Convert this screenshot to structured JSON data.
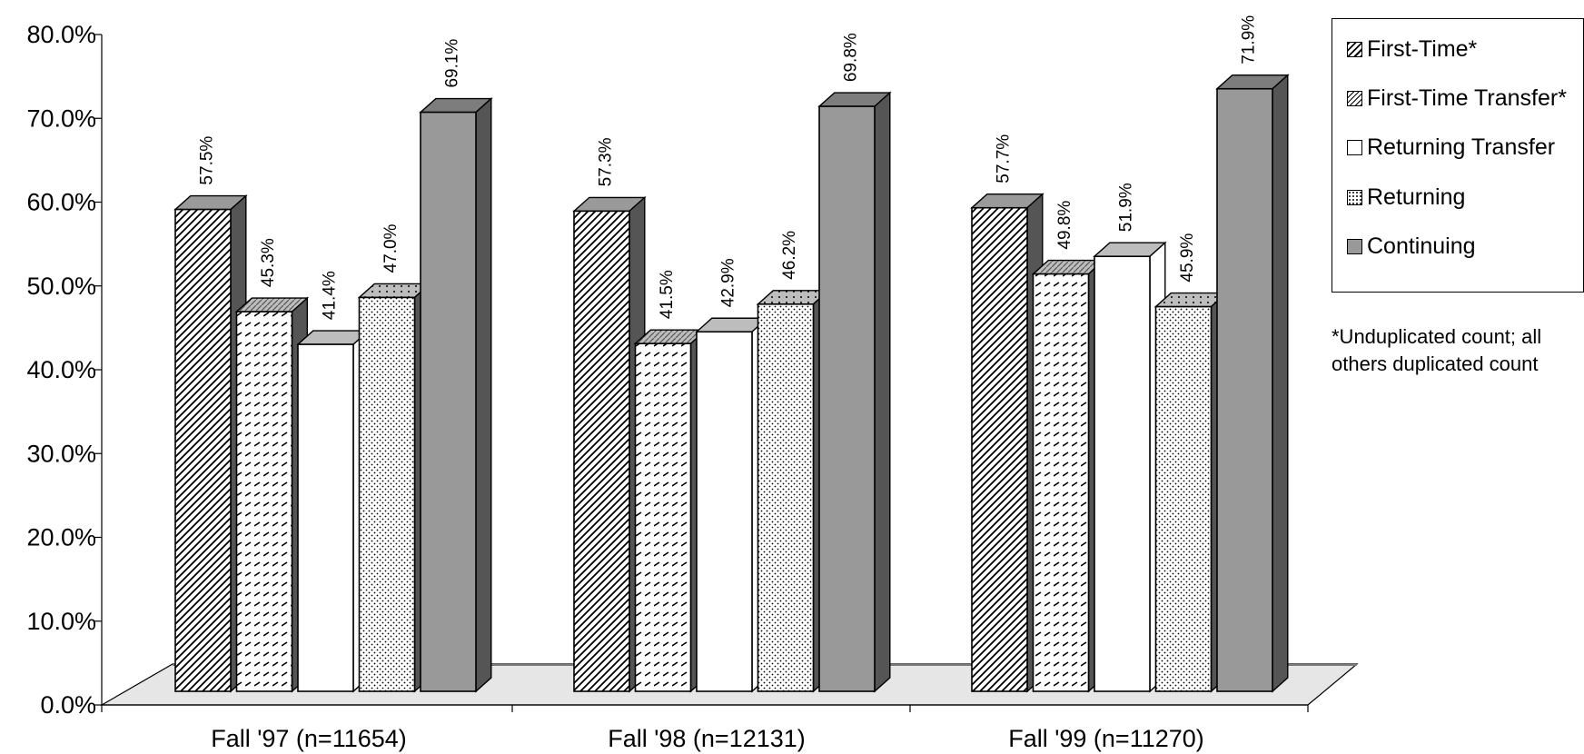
{
  "chart_data": {
    "type": "bar",
    "categories": [
      "Fall '97 (n=11654)",
      "Fall '98 (n=12131)",
      "Fall '99 (n=11270)"
    ],
    "series": [
      {
        "name": "First-Time*",
        "values": [
          57.5,
          57.3,
          57.7
        ],
        "labels": [
          "57.5%",
          "57.3%",
          "57.7%"
        ]
      },
      {
        "name": "First-Time Transfer*",
        "values": [
          45.3,
          41.5,
          49.8
        ],
        "labels": [
          "45.3%",
          "41.5%",
          "49.8%"
        ]
      },
      {
        "name": "Returning Transfer",
        "values": [
          41.4,
          42.9,
          51.9
        ],
        "labels": [
          "41.4%",
          "42.9%",
          "51.9%"
        ]
      },
      {
        "name": "Returning",
        "values": [
          47.0,
          46.2,
          45.9
        ],
        "labels": [
          "47.0%",
          "46.2%",
          "45.9%"
        ]
      },
      {
        "name": "Continuing",
        "values": [
          69.1,
          69.8,
          71.9
        ],
        "labels": [
          "69.1%",
          "69.8%",
          "71.9%"
        ]
      }
    ],
    "yticks": [
      "0.0%",
      "10.0%",
      "20.0%",
      "30.0%",
      "40.0%",
      "50.0%",
      "60.0%",
      "70.0%",
      "80.0%"
    ],
    "ylim": [
      0,
      80
    ],
    "legend_position": "right",
    "grid": false,
    "footnote": "*Unduplicated count; all others duplicated count",
    "colors": {
      "first_time": "#ffffff",
      "first_time_transfer": "#ffffff",
      "returning_transfer": "#ffffff",
      "returning": "#ffffff",
      "continuing": "#999999",
      "floor": "#e6e6e6",
      "floor_dark": "#7a7a7a"
    }
  }
}
